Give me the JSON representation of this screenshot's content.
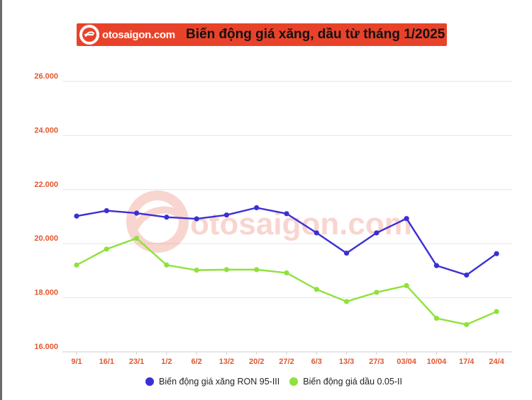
{
  "header": {
    "logo_text": "otosaigon.com",
    "title": "Biến động giá xăng, dầu từ tháng 1/2025"
  },
  "watermark": {
    "text": "otosaigon.com"
  },
  "colors": {
    "banner": "#e8432a",
    "axis_label": "#e0582f",
    "series_1": "#3a2fd6",
    "series_2": "#8ee23a",
    "grid": "#e6e6e6"
  },
  "chart_data": {
    "type": "line",
    "title": "Biến động giá xăng, dầu từ tháng 1/2025",
    "xlabel": "",
    "ylabel": "",
    "categories": [
      "9/1",
      "16/1",
      "23/1",
      "1/2",
      "6/2",
      "13/2",
      "20/2",
      "27/2",
      "6/3",
      "13/3",
      "27/3",
      "03/04",
      "10/04",
      "17/4",
      "24/4"
    ],
    "ylim": [
      16000,
      26000
    ],
    "yticks": [
      16000,
      18000,
      20000,
      22000,
      24000,
      26000
    ],
    "ytick_labels": [
      "16.000",
      "18.000",
      "20.000",
      "22.000",
      "24.000",
      "26.000"
    ],
    "grid": true,
    "legend_position": "bottom",
    "series": [
      {
        "name": "Biến động giá xăng RON 95-III",
        "values": [
          21020,
          21220,
          21130,
          20980,
          20920,
          21060,
          21330,
          21110,
          20400,
          19650,
          20400,
          20930,
          19190,
          18840,
          19630
        ]
      },
      {
        "name": "Biến động giá dầu 0.05-II",
        "values": [
          19210,
          19800,
          20200,
          19210,
          19020,
          19040,
          19040,
          18920,
          18310,
          17860,
          18200,
          18450,
          17240,
          17010,
          17490
        ]
      }
    ]
  }
}
